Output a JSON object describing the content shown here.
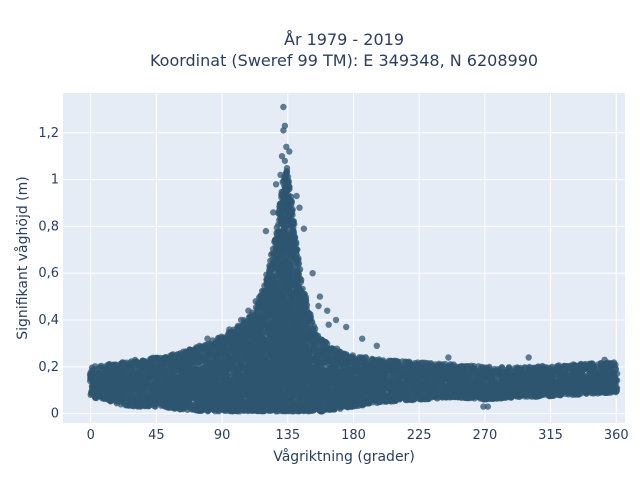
{
  "chart_data": {
    "type": "scatter",
    "title_line1": "År 1979 - 2019",
    "title_line2": "Koordinat (Sweref 99 TM): E 349348, N 6208990",
    "xlabel": "Vågriktning (grader)",
    "ylabel": "Signifikant våghöjd (m)",
    "xlim": [
      -19,
      366
    ],
    "ylim": [
      -0.04,
      1.37
    ],
    "x_ticks": [
      0,
      45,
      90,
      135,
      180,
      225,
      270,
      315,
      360
    ],
    "x_tick_labels": [
      "0",
      "45",
      "90",
      "135",
      "180",
      "225",
      "270",
      "315",
      "360"
    ],
    "y_ticks": [
      0,
      0.2,
      0.4,
      0.6,
      0.8,
      1.0,
      1.2
    ],
    "y_tick_labels": [
      "0",
      "0,2",
      "0,4",
      "0,6",
      "0,8",
      "1",
      "1,2"
    ],
    "grid": true,
    "colors": {
      "marker": "#2e5670",
      "plot_bg": "#e5ecf6",
      "grid": "#ffffff",
      "text": "#2a3f5f"
    },
    "envelope": {
      "x": [
        0,
        10,
        20,
        30,
        45,
        60,
        75,
        90,
        100,
        110,
        115,
        120,
        125,
        128,
        130,
        132,
        134,
        136,
        138,
        140,
        143,
        146,
        150,
        155,
        160,
        170,
        180,
        190,
        200,
        225,
        250,
        270,
        300,
        330,
        360
      ],
      "ymin": [
        0.07,
        0.06,
        0.04,
        0.03,
        0.03,
        0.02,
        0.01,
        0.01,
        0.01,
        0.01,
        0.01,
        0.01,
        0.01,
        0.01,
        0.01,
        0.01,
        0.01,
        0.01,
        0.01,
        0.01,
        0.01,
        0.01,
        0.01,
        0.01,
        0.01,
        0.02,
        0.03,
        0.04,
        0.05,
        0.06,
        0.07,
        0.06,
        0.07,
        0.08,
        0.09
      ],
      "ymax": [
        0.2,
        0.21,
        0.22,
        0.23,
        0.24,
        0.26,
        0.29,
        0.33,
        0.37,
        0.43,
        0.48,
        0.57,
        0.72,
        0.82,
        0.92,
        1.0,
        1.05,
        0.98,
        0.88,
        0.78,
        0.62,
        0.52,
        0.43,
        0.35,
        0.31,
        0.27,
        0.25,
        0.24,
        0.23,
        0.22,
        0.21,
        0.2,
        0.2,
        0.21,
        0.22
      ]
    },
    "outliers": [
      {
        "x": 132,
        "y": 1.31
      },
      {
        "x": 133,
        "y": 1.23
      },
      {
        "x": 132,
        "y": 1.21
      },
      {
        "x": 134,
        "y": 1.14
      },
      {
        "x": 131,
        "y": 1.1
      },
      {
        "x": 136,
        "y": 1.12
      },
      {
        "x": 133,
        "y": 1.08
      },
      {
        "x": 130,
        "y": 1.02
      },
      {
        "x": 127,
        "y": 0.98
      },
      {
        "x": 141,
        "y": 0.93
      },
      {
        "x": 143,
        "y": 0.88
      },
      {
        "x": 125,
        "y": 0.86
      },
      {
        "x": 120,
        "y": 0.78
      },
      {
        "x": 146,
        "y": 0.79
      },
      {
        "x": 152,
        "y": 0.6
      },
      {
        "x": 157,
        "y": 0.5
      },
      {
        "x": 162,
        "y": 0.44
      },
      {
        "x": 168,
        "y": 0.4
      },
      {
        "x": 175,
        "y": 0.37
      },
      {
        "x": 108,
        "y": 0.44
      },
      {
        "x": 113,
        "y": 0.48
      },
      {
        "x": 103,
        "y": 0.4
      },
      {
        "x": 95,
        "y": 0.36
      },
      {
        "x": 156,
        "y": 0.46
      },
      {
        "x": 163,
        "y": 0.38
      },
      {
        "x": 272,
        "y": 0.03
      },
      {
        "x": 269,
        "y": 0.03
      },
      {
        "x": 80,
        "y": 0.32
      },
      {
        "x": 186,
        "y": 0.32
      },
      {
        "x": 196,
        "y": 0.29
      },
      {
        "x": 245,
        "y": 0.24
      },
      {
        "x": 300,
        "y": 0.24
      },
      {
        "x": 352,
        "y": 0.23
      }
    ]
  }
}
